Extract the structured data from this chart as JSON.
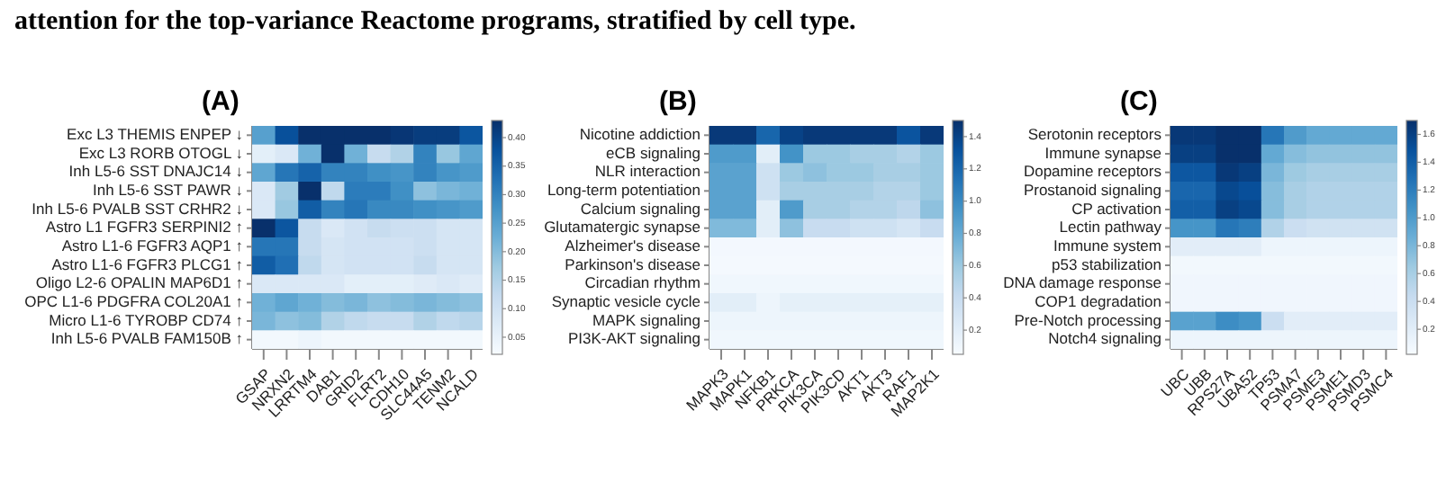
{
  "chart_data": [
    {
      "type": "heatmap",
      "title": "(A)",
      "annotations": [
        "attention for the top-variance Reactome programs, stratified by cell type."
      ],
      "categories": [
        "GSAP",
        "NRXN2",
        "LRRTM4",
        "DAB1",
        "GRID2",
        "FLRT2",
        "CDH10",
        "SLC44A5",
        "TENM2",
        "NCALD"
      ],
      "y_categories": [
        "Exc L3 THEMIS ENPEP ↓",
        "Exc L3 RORB OTOGL ↓",
        "Inh L5-6 SST DNAJC14 ↓",
        "Inh L5-6 SST PAWR ↓",
        "Inh L5-6 PVALB SST CRHR2 ↓",
        "Astro L1 FGFR3 SERPINI2 ↑",
        "Astro L1-6 FGFR3 AQP1 ↑",
        "Astro L1-6 FGFR3 PLCG1 ↑",
        "Oligo L2-6 OPALIN MAP6D1 ↑",
        "OPC L1-6 PDGFRA COL20A1 ↑",
        "Micro L1-6 TYROBP CD74 ↑",
        "Inh L5-6 PVALB FAM150B ↑"
      ],
      "cells": [
        [
          0.25,
          0.38,
          0.43,
          0.43,
          0.43,
          0.43,
          0.42,
          0.41,
          0.41,
          0.37
        ],
        [
          0.06,
          0.08,
          0.22,
          0.43,
          0.22,
          0.12,
          0.15,
          0.3,
          0.18,
          0.24
        ],
        [
          0.24,
          0.32,
          0.35,
          0.3,
          0.3,
          0.28,
          0.27,
          0.3,
          0.27,
          0.26
        ],
        [
          0.08,
          0.17,
          0.43,
          0.13,
          0.31,
          0.31,
          0.28,
          0.19,
          0.21,
          0.22
        ],
        [
          0.08,
          0.18,
          0.36,
          0.3,
          0.32,
          0.29,
          0.29,
          0.28,
          0.27,
          0.26
        ],
        [
          0.43,
          0.37,
          0.12,
          0.08,
          0.1,
          0.12,
          0.11,
          0.11,
          0.09,
          0.09
        ],
        [
          0.32,
          0.32,
          0.12,
          0.09,
          0.1,
          0.1,
          0.1,
          0.11,
          0.09,
          0.09
        ],
        [
          0.36,
          0.33,
          0.13,
          0.09,
          0.1,
          0.1,
          0.1,
          0.12,
          0.09,
          0.09
        ],
        [
          0.08,
          0.08,
          0.08,
          0.08,
          0.06,
          0.06,
          0.06,
          0.07,
          0.08,
          0.07
        ],
        [
          0.22,
          0.24,
          0.22,
          0.2,
          0.21,
          0.19,
          0.2,
          0.21,
          0.2,
          0.19
        ],
        [
          0.21,
          0.19,
          0.2,
          0.15,
          0.13,
          0.12,
          0.12,
          0.15,
          0.13,
          0.14
        ],
        [
          0.03,
          0.03,
          0.04,
          0.03,
          0.03,
          0.03,
          0.03,
          0.03,
          0.03,
          0.03
        ]
      ],
      "clim": [
        0.02,
        0.43
      ],
      "cticks": [
        0.05,
        {
          "value": 0.1,
          "label": "0.10"
        },
        0.15,
        {
          "value": 0.2,
          "label": "0.20"
        },
        0.25,
        {
          "value": 0.3,
          "label": "0.30"
        },
        0.35,
        {
          "value": 0.4,
          "label": "0.40"
        }
      ]
    },
    {
      "type": "heatmap",
      "title": "(B)",
      "categories": [
        "MAPK3",
        "MAPK1",
        "NFKB1",
        "PRKCA",
        "PIK3CA",
        "PIK3CD",
        "AKT1",
        "AKT3",
        "RAF1",
        "MAP2K1"
      ],
      "y_categories": [
        "Nicotine addiction",
        "eCB signaling",
        "NLR interaction",
        "Long-term potentiation",
        "Calcium signaling",
        "Glutamatergic synapse",
        "Alzheimer's disease",
        "Parkinson's disease",
        "Circadian rhythm",
        "Synaptic vesicle cycle",
        "MAPK signaling",
        "PI3K-AKT signaling"
      ],
      "cells": [
        [
          1.45,
          1.45,
          1.2,
          1.4,
          1.45,
          1.45,
          1.45,
          1.45,
          1.3,
          1.45
        ],
        [
          0.9,
          0.9,
          0.2,
          0.95,
          0.6,
          0.6,
          0.55,
          0.55,
          0.5,
          0.6
        ],
        [
          0.85,
          0.85,
          0.35,
          0.6,
          0.65,
          0.6,
          0.6,
          0.55,
          0.55,
          0.6
        ],
        [
          0.85,
          0.85,
          0.35,
          0.55,
          0.55,
          0.55,
          0.55,
          0.5,
          0.5,
          0.6
        ],
        [
          0.85,
          0.85,
          0.2,
          0.9,
          0.55,
          0.55,
          0.5,
          0.5,
          0.45,
          0.65
        ],
        [
          0.7,
          0.7,
          0.2,
          0.65,
          0.4,
          0.4,
          0.35,
          0.35,
          0.3,
          0.4
        ],
        [
          0.08,
          0.08,
          0.08,
          0.08,
          0.08,
          0.08,
          0.08,
          0.08,
          0.08,
          0.08
        ],
        [
          0.07,
          0.07,
          0.07,
          0.07,
          0.07,
          0.07,
          0.07,
          0.07,
          0.07,
          0.07
        ],
        [
          0.1,
          0.1,
          0.1,
          0.1,
          0.1,
          0.1,
          0.1,
          0.1,
          0.1,
          0.1
        ],
        [
          0.2,
          0.2,
          0.12,
          0.18,
          0.18,
          0.18,
          0.18,
          0.18,
          0.18,
          0.18
        ],
        [
          0.12,
          0.12,
          0.12,
          0.12,
          0.12,
          0.12,
          0.12,
          0.12,
          0.12,
          0.12
        ],
        [
          0.1,
          0.1,
          0.1,
          0.1,
          0.1,
          0.1,
          0.1,
          0.1,
          0.1,
          0.1
        ]
      ],
      "clim": [
        0.05,
        1.5
      ],
      "cticks": [
        0.2,
        0.4,
        0.6,
        0.8,
        {
          "value": 1,
          "label": "1.0"
        },
        1.2,
        1.4
      ]
    },
    {
      "type": "heatmap",
      "title": "(C)",
      "categories": [
        "UBC",
        "UBB",
        "RPS27A",
        "UBA52",
        "TP53",
        "PSMA7",
        "PSME3",
        "PSME1",
        "PSMD3",
        "PSMC4"
      ],
      "y_categories": [
        "Serotonin receptors",
        "Immune synapse",
        "Dopamine receptors",
        "Prostanoid signaling",
        "CP activation",
        "Lectin pathway",
        "Immune system",
        "p53 stabilization",
        "DNA damage response",
        "COP1 degradation",
        "Pre-Notch processing",
        "Notch4 signaling"
      ],
      "cells": [
        [
          1.65,
          1.65,
          1.7,
          1.7,
          1.25,
          1.0,
          0.9,
          0.9,
          0.9,
          0.9
        ],
        [
          1.6,
          1.6,
          1.7,
          1.7,
          0.9,
          0.75,
          0.7,
          0.7,
          0.7,
          0.7
        ],
        [
          1.45,
          1.45,
          1.65,
          1.6,
          0.8,
          0.65,
          0.6,
          0.6,
          0.6,
          0.6
        ],
        [
          1.35,
          1.35,
          1.55,
          1.5,
          0.75,
          0.6,
          0.55,
          0.55,
          0.55,
          0.55
        ],
        [
          1.4,
          1.4,
          1.6,
          1.55,
          0.75,
          0.6,
          0.55,
          0.55,
          0.55,
          0.55
        ],
        [
          1.05,
          1.05,
          1.25,
          1.2,
          0.55,
          0.4,
          0.35,
          0.35,
          0.35,
          0.35
        ],
        [
          0.2,
          0.2,
          0.2,
          0.2,
          0.1,
          0.1,
          0.1,
          0.1,
          0.1,
          0.1
        ],
        [
          0.06,
          0.06,
          0.06,
          0.06,
          0.06,
          0.06,
          0.06,
          0.06,
          0.06,
          0.06
        ],
        [
          0.08,
          0.08,
          0.08,
          0.08,
          0.08,
          0.08,
          0.08,
          0.08,
          0.08,
          0.08
        ],
        [
          0.08,
          0.08,
          0.08,
          0.08,
          0.08,
          0.08,
          0.08,
          0.08,
          0.08,
          0.08
        ],
        [
          0.95,
          0.95,
          1.1,
          1.05,
          0.4,
          0.2,
          0.2,
          0.2,
          0.2,
          0.2
        ],
        [
          0.1,
          0.1,
          0.1,
          0.1,
          0.1,
          0.1,
          0.1,
          0.1,
          0.1,
          0.1
        ]
      ],
      "clim": [
        0.02,
        1.7
      ],
      "cticks": [
        0.2,
        0.4,
        0.6,
        0.8,
        {
          "value": 1,
          "label": "1.0"
        },
        1.2,
        1.4,
        1.6
      ]
    }
  ]
}
